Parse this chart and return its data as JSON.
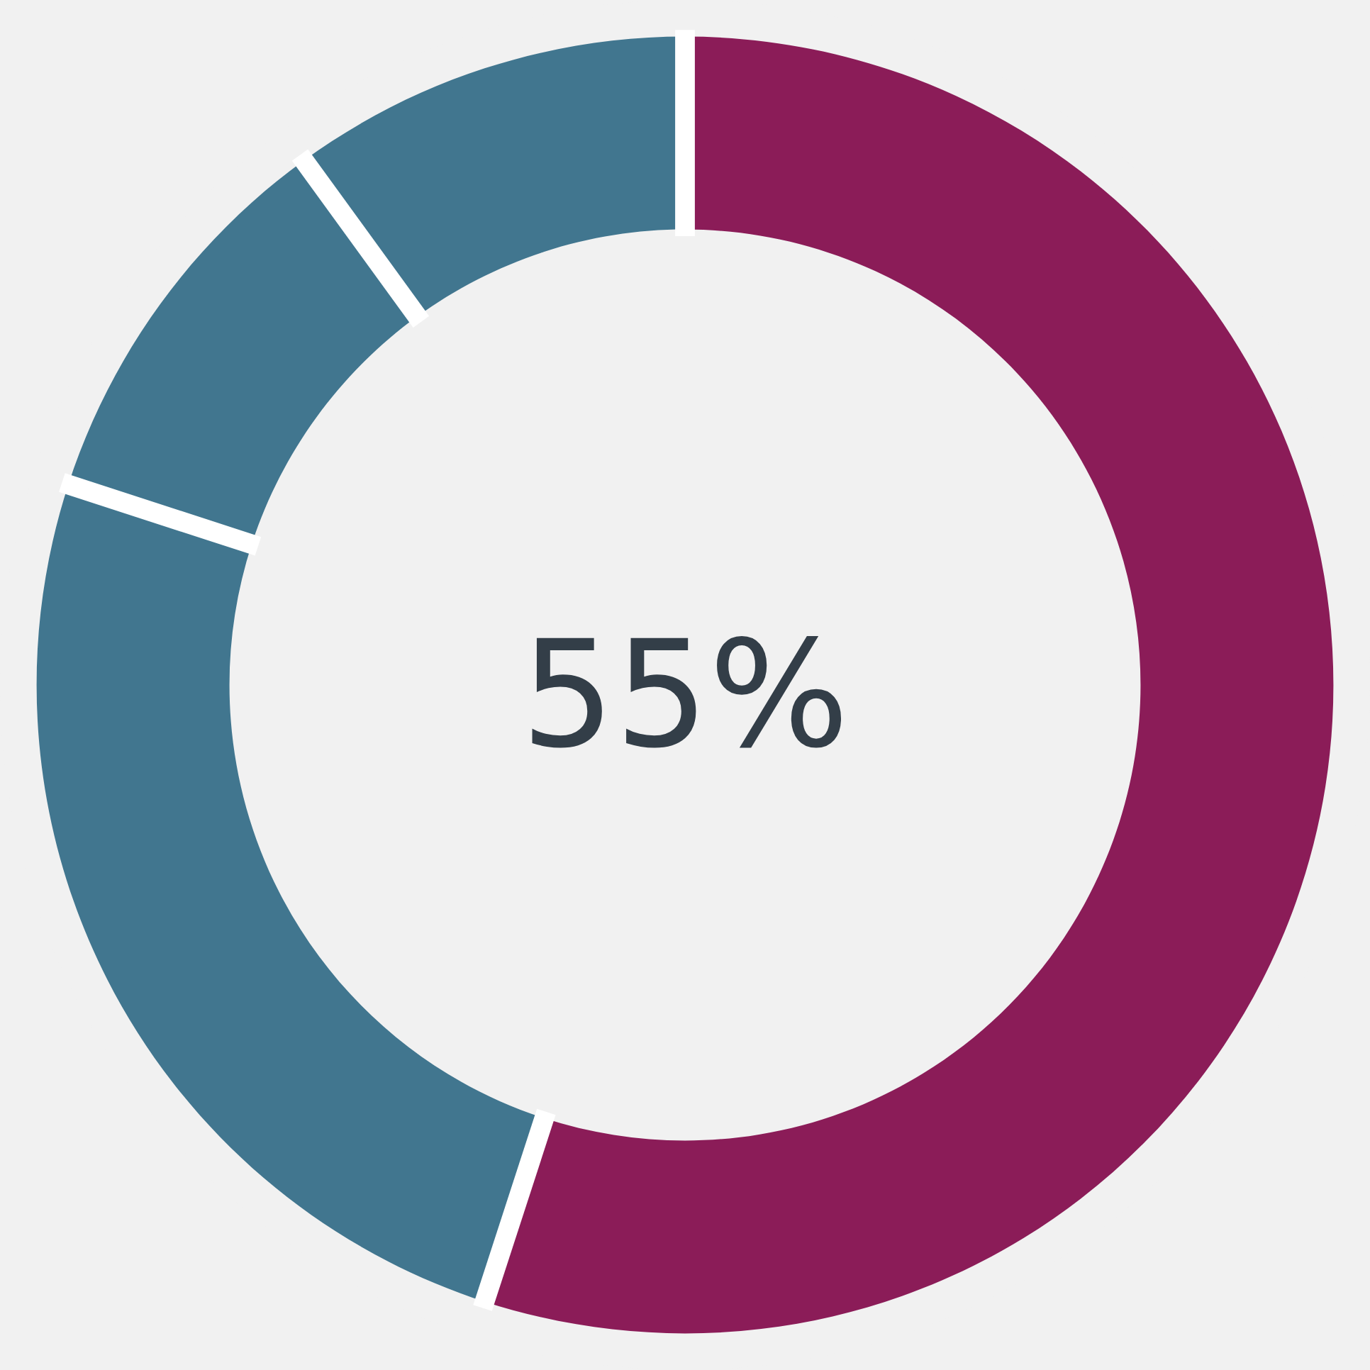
{
  "chart_data": {
    "type": "donut",
    "categories": [
      null,
      null,
      null,
      null
    ],
    "values": [
      55,
      25,
      10,
      10
    ],
    "colors": [
      "#8b1c58",
      "#41768f",
      "#41768f",
      "#41768f"
    ],
    "annotations": [
      "55%"
    ]
  }
}
